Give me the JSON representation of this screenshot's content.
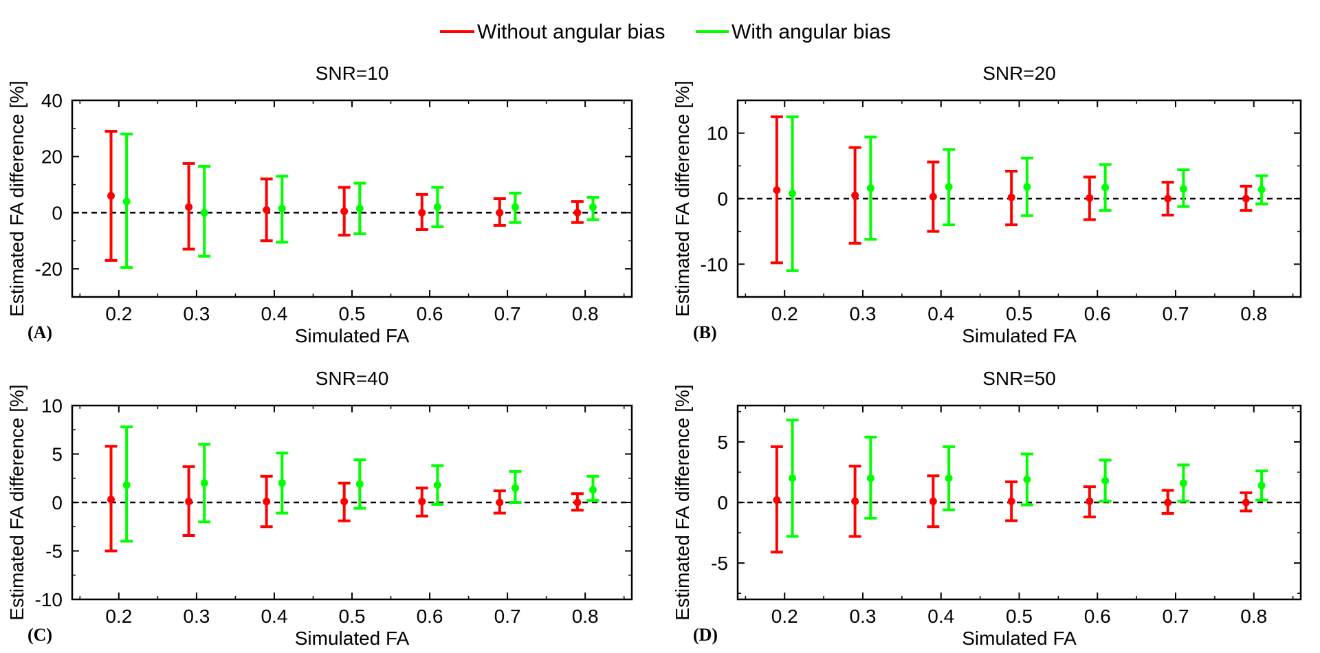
{
  "legend": {
    "entries": [
      {
        "label": "Without angular bias",
        "color": "#ff0000"
      },
      {
        "label": "With angular bias",
        "color": "#00ff00"
      }
    ],
    "placement": "top-center"
  },
  "colors": {
    "without": "#ff0000",
    "with": "#00ff00",
    "axis": "#000000",
    "zero_line": "#000000"
  },
  "chart_data": [
    {
      "type": "errorbar",
      "panel": "(A)",
      "title": "SNR=10",
      "xlabel": "Simulated FA",
      "ylabel": "Estimated FA difference [%]",
      "xlim": [
        0.14,
        0.86
      ],
      "ylim": [
        -30,
        40
      ],
      "xticks": [
        "0.2",
        "0.3",
        "0.4",
        "0.5",
        "0.6",
        "0.7",
        "0.8"
      ],
      "yticks": [
        -20,
        0,
        20,
        40
      ],
      "minor_yticks": [
        -30,
        -10,
        10,
        30
      ],
      "x": [
        0.2,
        0.3,
        0.4,
        0.5,
        0.6,
        0.7,
        0.8
      ],
      "series": [
        {
          "name": "Without angular bias",
          "color": "#ff0000",
          "offset": -0.01,
          "values": [
            6,
            2,
            1,
            0.5,
            0,
            0,
            0
          ],
          "lower": [
            -17,
            -13,
            -10,
            -8,
            -6,
            -4.5,
            -3.5
          ],
          "upper": [
            29,
            17.5,
            12,
            9,
            6.5,
            5,
            4
          ]
        },
        {
          "name": "With angular bias",
          "color": "#00ff00",
          "offset": 0.01,
          "values": [
            4,
            0,
            1.5,
            1.5,
            2,
            2,
            2
          ],
          "lower": [
            -19.5,
            -15.5,
            -10.5,
            -7.5,
            -5,
            -3.5,
            -2.5
          ],
          "upper": [
            28,
            16.5,
            13,
            10.5,
            9,
            7,
            5.5
          ]
        }
      ]
    },
    {
      "type": "errorbar",
      "panel": "(B)",
      "title": "SNR=20",
      "xlabel": "Simulated FA",
      "ylabel": "Estimated FA difference [%]",
      "xlim": [
        0.14,
        0.86
      ],
      "ylim": [
        -15,
        15
      ],
      "xticks": [
        "0.2",
        "0.3",
        "0.4",
        "0.5",
        "0.6",
        "0.7",
        "0.8"
      ],
      "yticks": [
        -10,
        0,
        10
      ],
      "minor_yticks": [
        -15,
        -5,
        5,
        15
      ],
      "x": [
        0.2,
        0.3,
        0.4,
        0.5,
        0.6,
        0.7,
        0.8
      ],
      "series": [
        {
          "name": "Without angular bias",
          "color": "#ff0000",
          "offset": -0.01,
          "values": [
            1.3,
            0.5,
            0.3,
            0.2,
            0.1,
            0,
            0
          ],
          "lower": [
            -9.8,
            -6.8,
            -5,
            -4,
            -3.2,
            -2.5,
            -1.8
          ],
          "upper": [
            12.5,
            7.8,
            5.6,
            4.2,
            3.3,
            2.5,
            1.9
          ]
        },
        {
          "name": "With angular bias",
          "color": "#00ff00",
          "offset": 0.01,
          "values": [
            0.8,
            1.6,
            1.8,
            1.8,
            1.7,
            1.5,
            1.4
          ],
          "lower": [
            -11,
            -6.2,
            -4,
            -2.6,
            -1.8,
            -1.2,
            -0.8
          ],
          "upper": [
            12.5,
            9.4,
            7.5,
            6.2,
            5.2,
            4.4,
            3.5
          ]
        }
      ]
    },
    {
      "type": "errorbar",
      "panel": "(C)",
      "title": "SNR=40",
      "xlabel": "Simulated FA",
      "ylabel": "Estimated FA difference [%]",
      "xlim": [
        0.14,
        0.86
      ],
      "ylim": [
        -10,
        10
      ],
      "xticks": [
        "0.2",
        "0.3",
        "0.4",
        "0.5",
        "0.6",
        "0.7",
        "0.8"
      ],
      "yticks": [
        -10,
        -5,
        0,
        5,
        10
      ],
      "minor_yticks": [
        -7.5,
        -2.5,
        2.5,
        7.5
      ],
      "x": [
        0.2,
        0.3,
        0.4,
        0.5,
        0.6,
        0.7,
        0.8
      ],
      "series": [
        {
          "name": "Without angular bias",
          "color": "#ff0000",
          "offset": -0.01,
          "values": [
            0.3,
            0.1,
            0.1,
            0.1,
            0.1,
            0,
            0
          ],
          "lower": [
            -5,
            -3.4,
            -2.5,
            -1.9,
            -1.4,
            -1.1,
            -0.8
          ],
          "upper": [
            5.8,
            3.7,
            2.7,
            2,
            1.5,
            1.2,
            0.9
          ]
        },
        {
          "name": "With angular bias",
          "color": "#00ff00",
          "offset": 0.01,
          "values": [
            1.8,
            2,
            2,
            1.9,
            1.8,
            1.5,
            1.3
          ],
          "lower": [
            -4,
            -2,
            -1.1,
            -0.6,
            -0.2,
            0,
            0.2
          ],
          "upper": [
            7.8,
            6,
            5.1,
            4.4,
            3.8,
            3.2,
            2.7
          ]
        }
      ]
    },
    {
      "type": "errorbar",
      "panel": "(D)",
      "title": "SNR=50",
      "xlabel": "Simulated FA",
      "ylabel": "Estimated FA difference [%]",
      "xlim": [
        0.14,
        0.86
      ],
      "ylim": [
        -8,
        8
      ],
      "xticks": [
        "0.2",
        "0.3",
        "0.4",
        "0.5",
        "0.6",
        "0.7",
        "0.8"
      ],
      "yticks": [
        -5,
        0,
        5
      ],
      "minor_yticks": [
        -7.5,
        -2.5,
        2.5,
        7.5
      ],
      "x": [
        0.2,
        0.3,
        0.4,
        0.5,
        0.6,
        0.7,
        0.8
      ],
      "series": [
        {
          "name": "Without angular bias",
          "color": "#ff0000",
          "offset": -0.01,
          "values": [
            0.2,
            0.1,
            0.1,
            0.1,
            0.1,
            0,
            0
          ],
          "lower": [
            -4.1,
            -2.8,
            -2,
            -1.5,
            -1.2,
            -0.9,
            -0.7
          ],
          "upper": [
            4.6,
            3,
            2.2,
            1.7,
            1.3,
            1,
            0.8
          ]
        },
        {
          "name": "With angular bias",
          "color": "#00ff00",
          "offset": 0.01,
          "values": [
            2,
            2,
            2,
            1.9,
            1.8,
            1.6,
            1.4
          ],
          "lower": [
            -2.8,
            -1.3,
            -0.6,
            -0.2,
            0.1,
            0.1,
            0.2
          ],
          "upper": [
            6.8,
            5.4,
            4.6,
            4,
            3.5,
            3.1,
            2.6
          ]
        }
      ]
    }
  ]
}
